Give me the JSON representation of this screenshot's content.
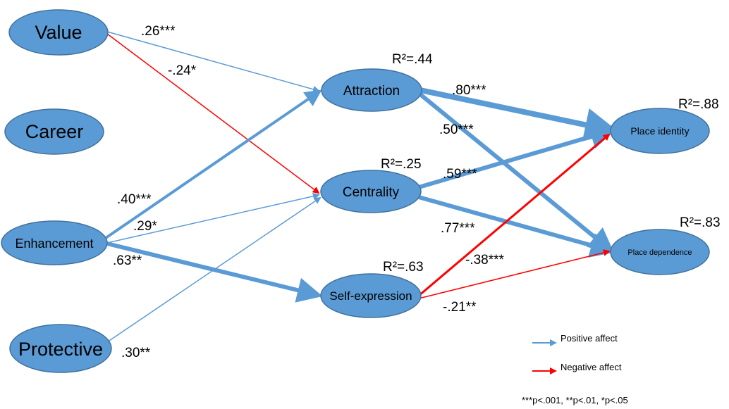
{
  "colors": {
    "positive": "#5b9bd5",
    "negative": "#ff0000",
    "node_fill": "#5b9bd5",
    "node_stroke": "#41719c",
    "text": "#000000"
  },
  "nodes": {
    "value": "Value",
    "career": "Career",
    "enhancement": "Enhancement",
    "protective": "Protective",
    "attraction": "Attraction",
    "centrality": "Centrality",
    "self_expression": "Self-expression",
    "place_identity": "Place identity",
    "place_dependence": "Place dependence"
  },
  "r_squared": {
    "attraction": "R²=.44",
    "centrality": "R²=.25",
    "self_expression": "R²=.63",
    "place_identity": "R²=.88",
    "place_dependence": "R²=.83"
  },
  "paths": [
    {
      "from": "Value",
      "to": "Attraction",
      "coefficient": ".26***",
      "affect": "positive"
    },
    {
      "from": "Value",
      "to": "Centrality",
      "coefficient": "-.24*",
      "affect": "negative"
    },
    {
      "from": "Enhancement",
      "to": "Attraction",
      "coefficient": ".40***",
      "affect": "positive"
    },
    {
      "from": "Enhancement",
      "to": "Centrality",
      "coefficient": ".29*",
      "affect": "positive"
    },
    {
      "from": "Enhancement",
      "to": "Self-expression",
      "coefficient": ".63**",
      "affect": "positive"
    },
    {
      "from": "Protective",
      "to": "Centrality",
      "coefficient": ".30**",
      "affect": "positive"
    },
    {
      "from": "Attraction",
      "to": "Place identity",
      "coefficient": ".80***",
      "affect": "positive"
    },
    {
      "from": "Attraction",
      "to": "Place dependence",
      "coefficient": ".50***",
      "affect": "positive"
    },
    {
      "from": "Centrality",
      "to": "Place identity",
      "coefficient": ".59***",
      "affect": "positive"
    },
    {
      "from": "Centrality",
      "to": "Place dependence",
      "coefficient": ".77***",
      "affect": "positive"
    },
    {
      "from": "Self-expression",
      "to": "Place identity",
      "coefficient": "-.38***",
      "affect": "negative"
    },
    {
      "from": "Self-expression",
      "to": "Place dependence",
      "coefficient": "-.21**",
      "affect": "negative"
    }
  ],
  "legend": {
    "positive": "Positive affect",
    "negative": "Negative affect",
    "significance": "***p<.001, **p<.01, *p<.05"
  }
}
